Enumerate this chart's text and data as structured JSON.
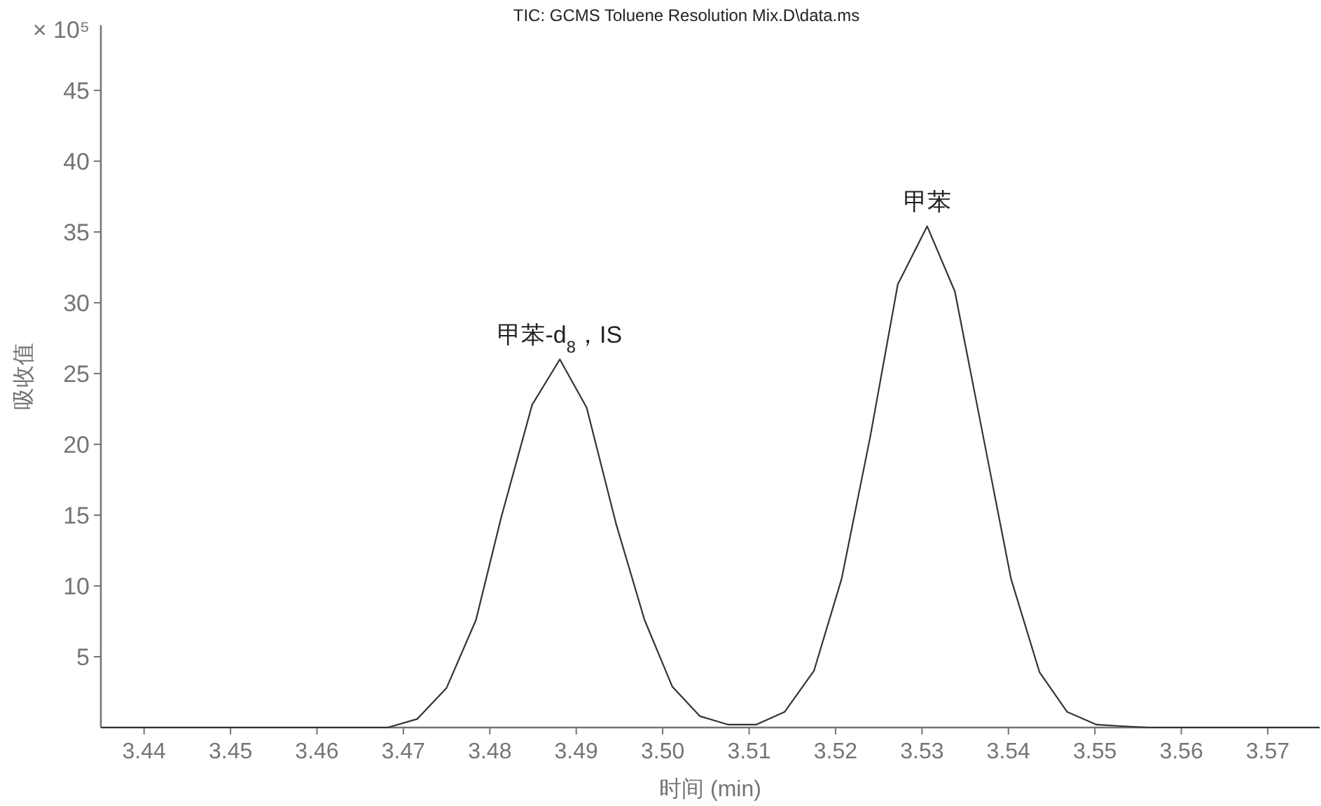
{
  "chart_data": {
    "type": "line",
    "title": "TIC: GCMS Toluene Resolution Mix.D\\data.ms",
    "xlabel": "时间 (min)",
    "ylabel": "吸收值",
    "annotations": [
      "× 10⁵",
      {
        "text": "甲苯-d$_{8}$，IS",
        "x": 3.4881,
        "y": 26.0
      },
      {
        "text": "甲苯",
        "x": 3.5306,
        "y": 35.4
      }
    ],
    "series": [
      {
        "color": "#333333",
        "x": [
          3.435,
          3.4682,
          3.4716,
          3.475,
          3.4784,
          3.4813,
          3.4849,
          3.4881,
          3.4912,
          3.4946,
          3.4979,
          3.5011,
          3.5043,
          3.5076,
          3.5108,
          3.5141,
          3.5175,
          3.5207,
          3.524,
          3.5272,
          3.5306,
          3.5338,
          3.5371,
          3.5403,
          3.5436,
          3.5468,
          3.5502,
          3.553,
          3.5562,
          3.576
        ],
        "values": [
          0,
          0,
          0.6,
          2.8,
          7.6,
          14.8,
          22.8,
          26.0,
          22.6,
          14.4,
          7.6,
          2.9,
          0.8,
          0.2,
          0.2,
          1.1,
          4.0,
          10.5,
          20.5,
          31.3,
          35.4,
          30.8,
          20.5,
          10.5,
          3.9,
          1.1,
          0.2,
          0.1,
          0,
          0
        ]
      }
    ],
    "xlim": [
      3.435,
      3.576
    ],
    "ylim": [
      0,
      49.6
    ],
    "xticks": [
      3.44,
      3.45,
      3.46,
      3.47,
      3.48,
      3.49,
      {
        "value": 3.5,
        "label": "3.50"
      },
      3.51,
      3.52,
      3.53,
      3.54,
      3.55,
      3.56,
      3.57
    ],
    "yticks": [
      5,
      10,
      15,
      20,
      25,
      30,
      35,
      40,
      45
    ],
    "grid": false,
    "marker": "none",
    "line_style": "solid"
  }
}
